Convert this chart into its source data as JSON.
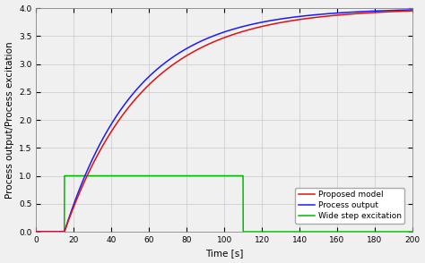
{
  "title": "",
  "xlabel": "Time [s]",
  "ylabel": "Process output/Process excitation",
  "xlim": [
    0,
    200
  ],
  "ylim": [
    0,
    4
  ],
  "xticks": [
    0,
    20,
    40,
    60,
    80,
    100,
    120,
    140,
    160,
    180,
    200
  ],
  "yticks": [
    0,
    0.5,
    1,
    1.5,
    2,
    2.5,
    3,
    3.5,
    4
  ],
  "grid_color": "#c8c8c8",
  "background_color": "#f0f0f0",
  "step_start": 15,
  "step_end": 110,
  "step_height": 1,
  "process_gain": 4,
  "delay_blue": 15,
  "tau_blue": 38,
  "delay_red": 15,
  "tau_red": 42,
  "process_color_blue": "#1a1aff",
  "process_color_red": "#dd1111",
  "step_color": "#00bb00",
  "legend_labels": [
    "Proposed model",
    "Process output",
    "Wide step excitation"
  ],
  "linewidth": 1.1,
  "legend_fontsize": 6.5,
  "axis_fontsize": 7.5,
  "tick_fontsize": 6.5,
  "figsize": [
    4.74,
    2.94
  ],
  "dpi": 100
}
